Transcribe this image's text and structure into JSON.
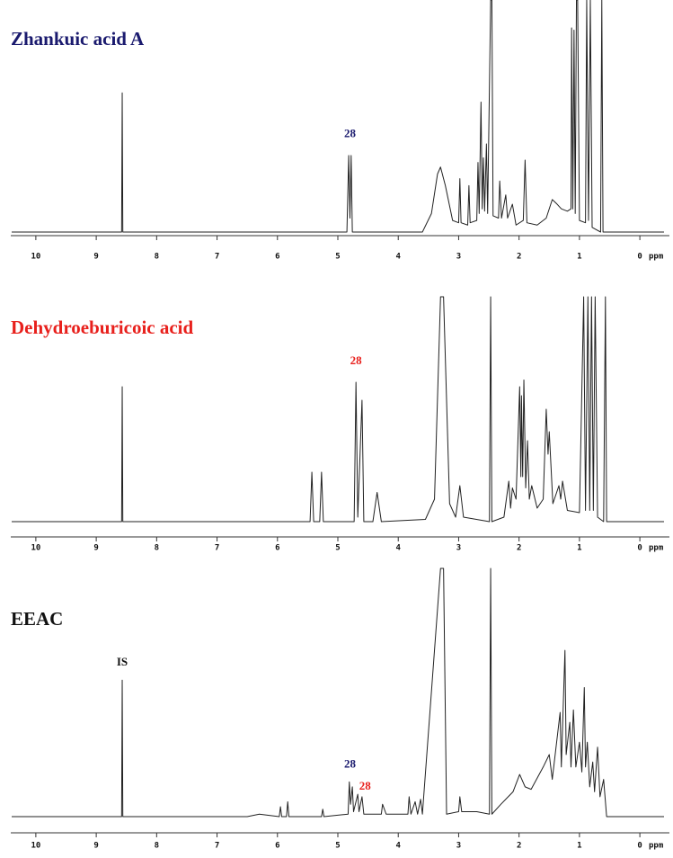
{
  "chart_data": [
    {
      "type": "line",
      "title": "Zhankuic acid A",
      "title_color": "#1a1a6e",
      "x": [
        10.4,
        8.58,
        8.57,
        8.56,
        4.85,
        4.82,
        4.8,
        4.78,
        4.76,
        3.6,
        3.45,
        3.35,
        3.3,
        3.22,
        3.1,
        3.0,
        2.98,
        2.96,
        2.85,
        2.83,
        2.81,
        2.7,
        2.68,
        2.66,
        2.63,
        2.61,
        2.59,
        2.57,
        2.54,
        2.52,
        2.47,
        2.45,
        2.43,
        2.34,
        2.32,
        2.29,
        2.22,
        2.19,
        2.11,
        2.05,
        1.93,
        1.9,
        1.87,
        1.7,
        1.55,
        1.45,
        1.37,
        1.3,
        1.2,
        1.14,
        1.13,
        1.11,
        1.09,
        1.07,
        1.05,
        1.03,
        1.0,
        0.9,
        0.88,
        0.85,
        0.82,
        0.79,
        0.65,
        0.63,
        0.61,
        -0.4
      ],
      "series": [
        {
          "color": "#222222",
          "values": [
            0,
            0,
            60,
            0,
            0,
            33,
            6,
            33,
            0,
            0,
            8,
            25,
            28,
            20,
            5,
            4,
            23,
            4,
            3,
            20,
            4,
            5,
            30,
            8,
            56,
            10,
            32,
            9,
            38,
            8,
            100,
            100,
            7,
            6,
            22,
            6,
            16,
            6,
            12,
            3,
            5,
            31,
            4,
            3,
            6,
            14,
            12,
            10,
            9,
            10,
            88,
            10,
            87,
            8,
            100,
            100,
            5,
            4,
            100,
            5,
            100,
            2,
            0,
            100,
            0,
            0
          ]
        }
      ],
      "xlim": [
        10.4,
        -0.4
      ],
      "ylim": [
        0,
        100
      ],
      "xticks": [
        10,
        9,
        8,
        7,
        6,
        5,
        4,
        3,
        2,
        1,
        0
      ],
      "xlabel": "ppm",
      "grid": false,
      "annotations": [
        {
          "text": "28",
          "x": 4.8,
          "y": 39,
          "color": "#1a1a6e"
        }
      ]
    },
    {
      "type": "line",
      "title": "Dehydroeburicoic acid",
      "title_color": "#e8201c",
      "x": [
        10.4,
        8.58,
        8.57,
        8.56,
        5.46,
        5.43,
        5.4,
        5.3,
        5.27,
        5.24,
        4.73,
        4.7,
        4.67,
        4.6,
        4.57,
        4.42,
        4.35,
        4.28,
        3.55,
        3.4,
        3.3,
        3.25,
        3.15,
        3.05,
        2.98,
        2.92,
        2.49,
        2.47,
        2.45,
        2.25,
        2.17,
        2.14,
        2.11,
        2.05,
        1.99,
        1.97,
        1.96,
        1.94,
        1.92,
        1.89,
        1.86,
        1.83,
        1.79,
        1.7,
        1.6,
        1.55,
        1.52,
        1.5,
        1.44,
        1.34,
        1.31,
        1.28,
        1.2,
        1.0,
        0.93,
        0.9,
        0.86,
        0.83,
        0.8,
        0.77,
        0.74,
        0.7,
        0.6,
        0.57,
        0.55,
        -0.4
      ],
      "series": [
        {
          "color": "#222222",
          "values": [
            0,
            0,
            60,
            0,
            0,
            22,
            0,
            0,
            22,
            0,
            0,
            62,
            2,
            54,
            0,
            0,
            13,
            0,
            1,
            10,
            100,
            100,
            8,
            2,
            16,
            2,
            0,
            100,
            0,
            2,
            18,
            6,
            15,
            10,
            60,
            20,
            56,
            20,
            63,
            15,
            36,
            10,
            16,
            6,
            10,
            50,
            30,
            40,
            8,
            16,
            10,
            18,
            5,
            4,
            100,
            5,
            100,
            5,
            100,
            5,
            100,
            2,
            0,
            100,
            0,
            0
          ]
        }
      ],
      "xlim": [
        10.4,
        -0.4
      ],
      "ylim": [
        0,
        100
      ],
      "xticks": [
        10,
        9,
        8,
        7,
        6,
        5,
        4,
        3,
        2,
        1,
        0
      ],
      "xlabel": "ppm",
      "grid": false,
      "annotations": [
        {
          "text": "28",
          "x": 4.7,
          "y": 68,
          "color": "#e8201c"
        }
      ]
    },
    {
      "type": "line",
      "title": "EEAC",
      "title_color": "#111111",
      "x": [
        10.4,
        8.58,
        8.57,
        8.56,
        6.5,
        6.3,
        5.97,
        5.95,
        5.93,
        5.85,
        5.83,
        5.81,
        5.27,
        5.25,
        5.23,
        4.83,
        4.81,
        4.79,
        4.76,
        4.74,
        4.67,
        4.65,
        4.6,
        4.57,
        4.28,
        4.26,
        4.2,
        3.84,
        3.82,
        3.79,
        3.72,
        3.68,
        3.63,
        3.6,
        3.3,
        3.25,
        3.2,
        3.0,
        2.98,
        2.95,
        2.7,
        2.49,
        2.47,
        2.45,
        2.3,
        2.1,
        1.99,
        1.9,
        1.8,
        1.6,
        1.5,
        1.45,
        1.32,
        1.3,
        1.24,
        1.22,
        1.16,
        1.14,
        1.1,
        1.06,
        1.0,
        0.96,
        0.92,
        0.9,
        0.87,
        0.83,
        0.78,
        0.75,
        0.7,
        0.66,
        0.6,
        0.55,
        -0.4
      ],
      "series": [
        {
          "color": "#222222",
          "values": [
            0,
            0,
            55,
            0,
            0,
            1,
            0,
            4,
            0,
            0,
            6,
            0,
            0,
            3,
            0,
            1,
            14,
            5,
            12,
            2,
            9,
            2,
            8,
            1,
            1,
            5,
            1,
            1,
            8,
            1,
            6,
            1,
            7,
            1,
            100,
            100,
            1,
            2,
            8,
            2,
            2,
            1,
            100,
            1,
            5,
            10,
            17,
            12,
            11,
            20,
            25,
            15,
            42,
            20,
            67,
            25,
            38,
            20,
            43,
            20,
            30,
            18,
            52,
            20,
            30,
            12,
            22,
            10,
            28,
            8,
            15,
            0,
            0
          ]
        }
      ],
      "xlim": [
        10.4,
        -0.4
      ],
      "ylim": [
        0,
        100
      ],
      "xticks": [
        10,
        9,
        8,
        7,
        6,
        5,
        4,
        3,
        2,
        1,
        0
      ],
      "xlabel": "ppm",
      "grid": false,
      "annotations": [
        {
          "text": "IS",
          "x": 8.57,
          "y": 59,
          "color": "#111111"
        },
        {
          "text": "28",
          "x": 4.8,
          "y": 18,
          "color": "#1a1a6e"
        },
        {
          "text": "28",
          "x": 4.55,
          "y": 9,
          "color": "#e8201c"
        }
      ]
    }
  ]
}
